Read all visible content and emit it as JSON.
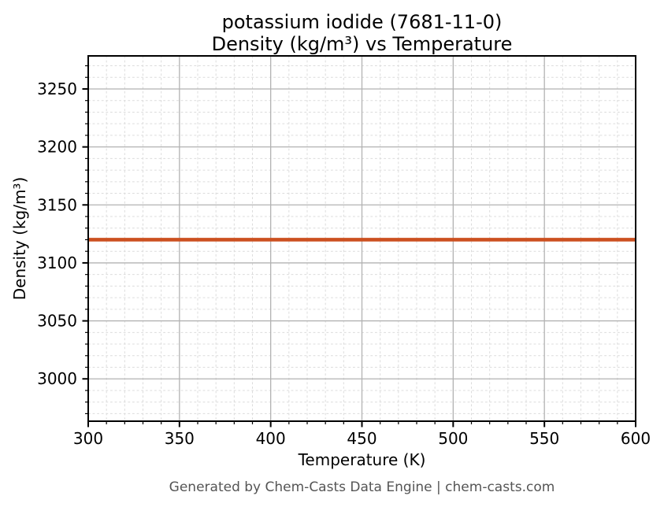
{
  "footer": {
    "credit": "Generated by Chem-Casts Data Engine | chem-casts.com",
    "color": "#555555"
  },
  "chart_data": {
    "type": "line",
    "title_lines": [
      "potassium iodide (7681-11-0)",
      "Density (kg/m³) vs Temperature"
    ],
    "title": "potassium iodide (7681-11-0) Density (kg/m³) vs Temperature",
    "xlabel": "Temperature (K)",
    "ylabel": "Density (kg/m³)",
    "xlim": [
      300,
      600
    ],
    "ylim": [
      2963.5,
      3278.5
    ],
    "xticks": [
      300,
      350,
      400,
      450,
      500,
      550,
      600
    ],
    "yticks": [
      3000,
      3050,
      3100,
      3150,
      3200,
      3250
    ],
    "minor_step_x": 10,
    "minor_step_y": 10,
    "grid": {
      "major": "solid",
      "minor": "dashed"
    },
    "legend": "none",
    "axis_color": "#000000",
    "grid_major_color": "#b2b2b2",
    "grid_minor_color": "#dcdcdc",
    "series": [
      {
        "name": "density",
        "color": "#cc5020",
        "line_width": 4.6,
        "x": [
          300,
          350,
          400,
          450,
          500,
          550,
          600
        ],
        "y": [
          3120,
          3120,
          3120,
          3120,
          3120,
          3120,
          3120
        ]
      }
    ]
  }
}
